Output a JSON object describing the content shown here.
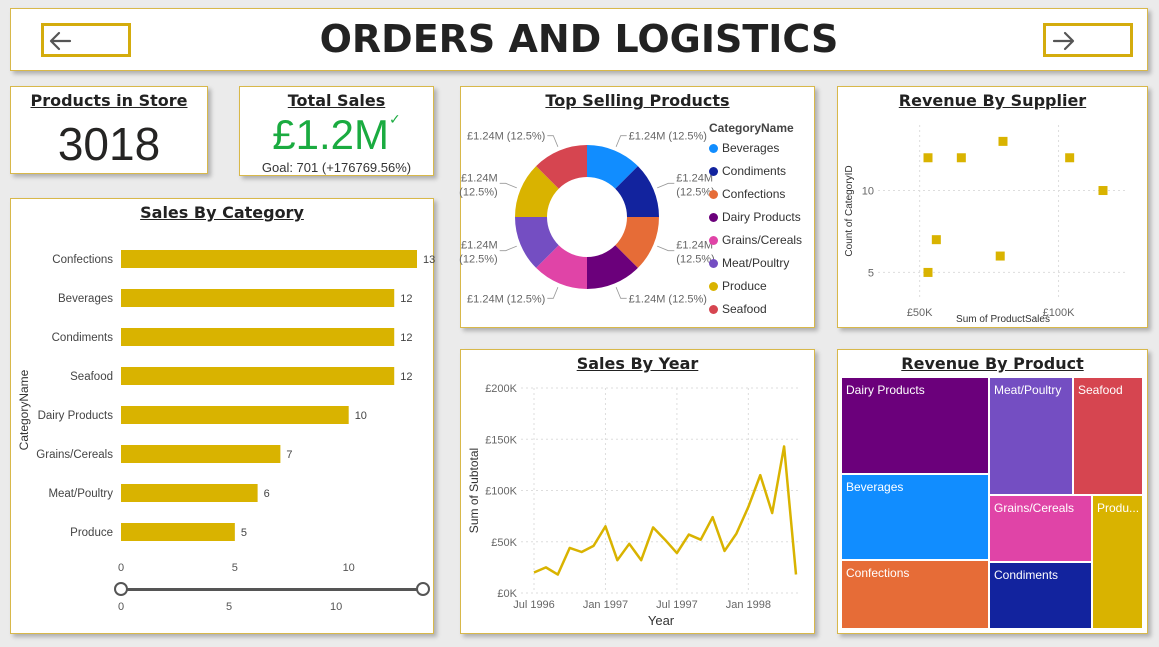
{
  "header": {
    "title": "ORDERS AND LOGISTICS"
  },
  "kpi_products": {
    "title": "Products in Store",
    "value": "3018"
  },
  "kpi_sales": {
    "title": "Total Sales",
    "value": "£1.2M",
    "goal": "Goal: 701 (+176769.56%)"
  },
  "top_selling": {
    "title": "Top Selling Products",
    "legend_title": "CategoryName",
    "slice_label": "£1.24M (12.5%)",
    "slice_label_line1": "£1.24M",
    "slice_label_line2": "(12.5%)",
    "categories": [
      "Beverages",
      "Condiments",
      "Confections",
      "Dairy Products",
      "Grains/Cereals",
      "Meat/Poultry",
      "Produce",
      "Seafood"
    ],
    "colors": [
      "#118dff",
      "#12239e",
      "#e66c37",
      "#6b007b",
      "#e044a7",
      "#744ec2",
      "#d9b300",
      "#d64550"
    ]
  },
  "supplier": {
    "title": "Revenue By Supplier"
  },
  "category": {
    "title": "Sales By Category",
    "slider_min": "0",
    "slider_mid": "5",
    "slider_max": "10"
  },
  "year": {
    "title": "Sales By Year"
  },
  "product": {
    "title": "Revenue By Product",
    "cells": [
      "Dairy Products",
      "Meat/Poultry",
      "Seafood",
      "Beverages",
      "Grains/Cereals",
      "Produ...",
      "Confections",
      "Condiments"
    ]
  },
  "chart_data": [
    {
      "type": "pie",
      "title": "Top Selling Products",
      "legend_title": "CategoryName",
      "categories": [
        "Beverages",
        "Condiments",
        "Confections",
        "Dairy Products",
        "Grains/Cereals",
        "Meat/Poultry",
        "Produce",
        "Seafood"
      ],
      "values": [
        1.24,
        1.24,
        1.24,
        1.24,
        1.24,
        1.24,
        1.24,
        1.24
      ],
      "labels": [
        "£1.24M (12.5%)",
        "£1.24M (12.5%)",
        "£1.24M (12.5%)",
        "£1.24M (12.5%)",
        "£1.24M (12.5%)",
        "£1.24M (12.5%)",
        "£1.24M (12.5%)",
        "£1.24M (12.5%)"
      ],
      "legend_position": "right"
    },
    {
      "type": "scatter",
      "title": "Revenue By Supplier",
      "xlabel": "Sum of ProductSales",
      "ylabel": "Count of CategoryID",
      "x_ticks": [
        "£50K",
        "£100K"
      ],
      "y_ticks": [
        "5",
        "10"
      ],
      "x_values": [
        53,
        65,
        80,
        104,
        116,
        56,
        53,
        79
      ],
      "y_values": [
        12,
        12,
        13,
        12,
        10,
        7,
        5,
        6
      ],
      "xlim": [
        35,
        125
      ],
      "ylim": [
        3.5,
        14
      ],
      "grid": true
    },
    {
      "type": "bar",
      "orientation": "horizontal",
      "title": "Sales By Category",
      "ylabel": "CategoryName",
      "categories": [
        "Confections",
        "Beverages",
        "Condiments",
        "Seafood",
        "Dairy Products",
        "Grains/Cereals",
        "Meat/Poultry",
        "Produce"
      ],
      "values": [
        13,
        12,
        12,
        12,
        10,
        7,
        6,
        5
      ],
      "x_ticks": [
        "0",
        "5",
        "10"
      ],
      "xlim": [
        0,
        13.5
      ],
      "color": "#d9b300"
    },
    {
      "type": "line",
      "title": "Sales By Year",
      "xlabel": "Year",
      "ylabel": "Sum of Subtotal",
      "x_ticks": [
        "Jul 1996",
        "Jan 1997",
        "Jul 1997",
        "Jan 1998"
      ],
      "y_ticks": [
        "£0K",
        "£50K",
        "£100K",
        "£150K",
        "£200K"
      ],
      "ylim": [
        0,
        200
      ],
      "values": [
        20,
        25,
        18,
        44,
        40,
        46,
        65,
        32,
        48,
        32,
        64,
        52,
        39,
        57,
        52,
        74,
        41,
        58,
        84,
        115,
        78,
        143,
        18
      ],
      "color": "#d9b300",
      "grid": true
    },
    {
      "type": "treemap",
      "title": "Revenue By Product",
      "categories": [
        "Dairy Products",
        "Meat/Poultry",
        "Seafood",
        "Beverages",
        "Grains/Cereals",
        "Produce",
        "Confections",
        "Condiments"
      ],
      "colors": [
        "#6b007b",
        "#744ec2",
        "#d64550",
        "#118dff",
        "#e044a7",
        "#d9b300",
        "#e66c37",
        "#12239e"
      ]
    }
  ]
}
